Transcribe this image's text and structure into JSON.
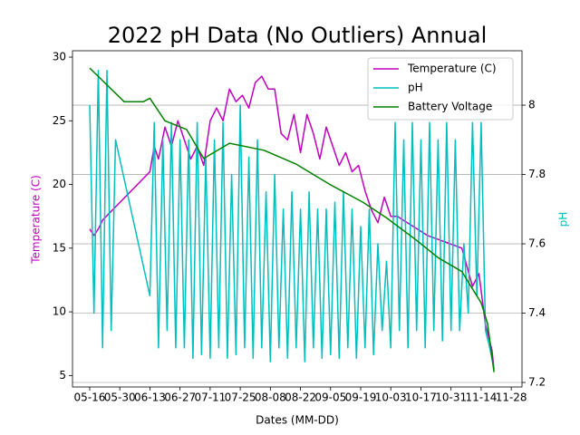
{
  "chart_data": {
    "type": "line",
    "title": "2022 pH Data (No Outliers) Annual",
    "x_label": "Dates (MM-DD)",
    "y_label": "Temperature (C)",
    "y2_label": "pH",
    "xlim": [
      "05-08",
      "12-03"
    ],
    "xticks": [
      "05-16",
      "05-30",
      "06-13",
      "06-27",
      "07-11",
      "07-25",
      "08-08",
      "08-22",
      "09-05",
      "09-19",
      "10-03",
      "10-17",
      "10-31",
      "11-14",
      "11-28"
    ],
    "ylim": [
      4.1,
      30.5
    ],
    "yticks": [
      5,
      10,
      15,
      20,
      25,
      30
    ],
    "y2lim": [
      7.187,
      8.157
    ],
    "y2ticks": [
      7.2,
      7.4,
      7.6,
      7.8,
      8.0
    ],
    "grid": true,
    "legend": "upper right",
    "series": [
      {
        "name": "Temperature (C)",
        "color": "#bf00bf",
        "x": [
          "05-16",
          "05-18",
          "05-20",
          "05-22",
          "06-13",
          "06-15",
          "06-17",
          "06-20",
          "06-23",
          "06-26",
          "06-29",
          "07-02",
          "07-05",
          "07-08",
          "07-11",
          "07-14",
          "07-17",
          "07-20",
          "07-23",
          "07-26",
          "07-29",
          "08-01",
          "08-04",
          "08-07",
          "08-10",
          "08-13",
          "08-16",
          "08-19",
          "08-22",
          "08-25",
          "08-28",
          "08-31",
          "09-03",
          "09-06",
          "09-09",
          "09-12",
          "09-15",
          "09-18",
          "09-21",
          "09-24",
          "09-27",
          "09-30",
          "10-03",
          "10-06",
          "10-20",
          "11-05",
          "11-10",
          "11-13",
          "11-16",
          "11-19",
          "11-20"
        ],
        "values": [
          16.5,
          16,
          16.5,
          17.2,
          21,
          23,
          22,
          24.5,
          23,
          25,
          23.5,
          22,
          23,
          21.5,
          25,
          26,
          25,
          27.5,
          26.5,
          27,
          26,
          28,
          28.5,
          27.5,
          27.5,
          24,
          23.5,
          25.5,
          22.5,
          25.5,
          24,
          22,
          24.5,
          23,
          21.5,
          22.5,
          21,
          21.5,
          19.5,
          18,
          17,
          19,
          17.5,
          17.5,
          16,
          15,
          12,
          13,
          9,
          7,
          5.5
        ]
      },
      {
        "name": "pH",
        "color": "#00bfbf",
        "axis": "y2",
        "x": [
          "05-16",
          "05-18",
          "05-20",
          "05-22",
          "05-24",
          "05-26",
          "05-28",
          "06-13",
          "06-15",
          "06-17",
          "06-19",
          "06-21",
          "06-23",
          "06-25",
          "06-27",
          "06-29",
          "07-01",
          "07-03",
          "07-05",
          "07-07",
          "07-09",
          "07-11",
          "07-13",
          "07-15",
          "07-17",
          "07-19",
          "07-21",
          "07-23",
          "07-25",
          "07-27",
          "07-29",
          "07-31",
          "08-02",
          "08-04",
          "08-06",
          "08-08",
          "08-10",
          "08-12",
          "08-14",
          "08-16",
          "08-18",
          "08-20",
          "08-22",
          "08-24",
          "08-26",
          "08-28",
          "08-30",
          "09-01",
          "09-03",
          "09-05",
          "09-07",
          "09-09",
          "09-11",
          "09-13",
          "09-15",
          "09-17",
          "09-19",
          "09-21",
          "09-23",
          "09-25",
          "09-27",
          "09-29",
          "10-01",
          "10-03",
          "10-05",
          "10-07",
          "10-09",
          "10-11",
          "10-13",
          "10-15",
          "10-17",
          "10-19",
          "10-21",
          "10-23",
          "10-25",
          "10-27",
          "10-29",
          "10-31",
          "11-02",
          "11-04",
          "11-06",
          "11-08",
          "11-10",
          "11-12",
          "11-14",
          "11-16",
          "11-18",
          "11-20"
        ],
        "values": [
          8.0,
          7.4,
          8.1,
          7.3,
          8.1,
          7.35,
          7.9,
          7.45,
          7.95,
          7.3,
          7.9,
          7.35,
          7.95,
          7.3,
          7.9,
          7.3,
          7.9,
          7.27,
          7.95,
          7.28,
          7.85,
          7.27,
          7.9,
          7.3,
          7.95,
          7.27,
          7.8,
          7.28,
          8.0,
          7.3,
          7.85,
          7.27,
          7.9,
          7.3,
          7.75,
          7.26,
          7.8,
          7.3,
          7.7,
          7.27,
          7.75,
          7.3,
          7.7,
          7.26,
          7.75,
          7.3,
          7.7,
          7.27,
          7.7,
          7.28,
          7.72,
          7.27,
          7.75,
          7.3,
          7.7,
          7.27,
          7.65,
          7.3,
          7.7,
          7.28,
          7.6,
          7.35,
          7.55,
          7.3,
          7.95,
          7.35,
          7.9,
          7.3,
          7.95,
          7.35,
          7.9,
          7.3,
          7.95,
          7.35,
          7.9,
          7.32,
          7.95,
          7.35,
          7.9,
          7.35,
          7.6,
          7.4,
          7.95,
          7.45,
          7.95,
          7.35,
          7.3,
          7.24
        ]
      },
      {
        "name": "Battery Voltage",
        "color": "#008000",
        "axis": "y2",
        "x": [
          "05-16",
          "06-01",
          "06-10",
          "06-13",
          "06-20",
          "06-30",
          "07-08",
          "07-20",
          "08-05",
          "08-20",
          "09-05",
          "09-20",
          "10-01",
          "10-15",
          "10-25",
          "11-05",
          "11-10",
          "11-14",
          "11-17",
          "11-20"
        ],
        "values": [
          8.107,
          8.01,
          8.01,
          8.02,
          7.955,
          7.93,
          7.846,
          7.89,
          7.87,
          7.83,
          7.77,
          7.72,
          7.675,
          7.61,
          7.56,
          7.52,
          7.47,
          7.43,
          7.37,
          7.23
        ]
      }
    ]
  }
}
